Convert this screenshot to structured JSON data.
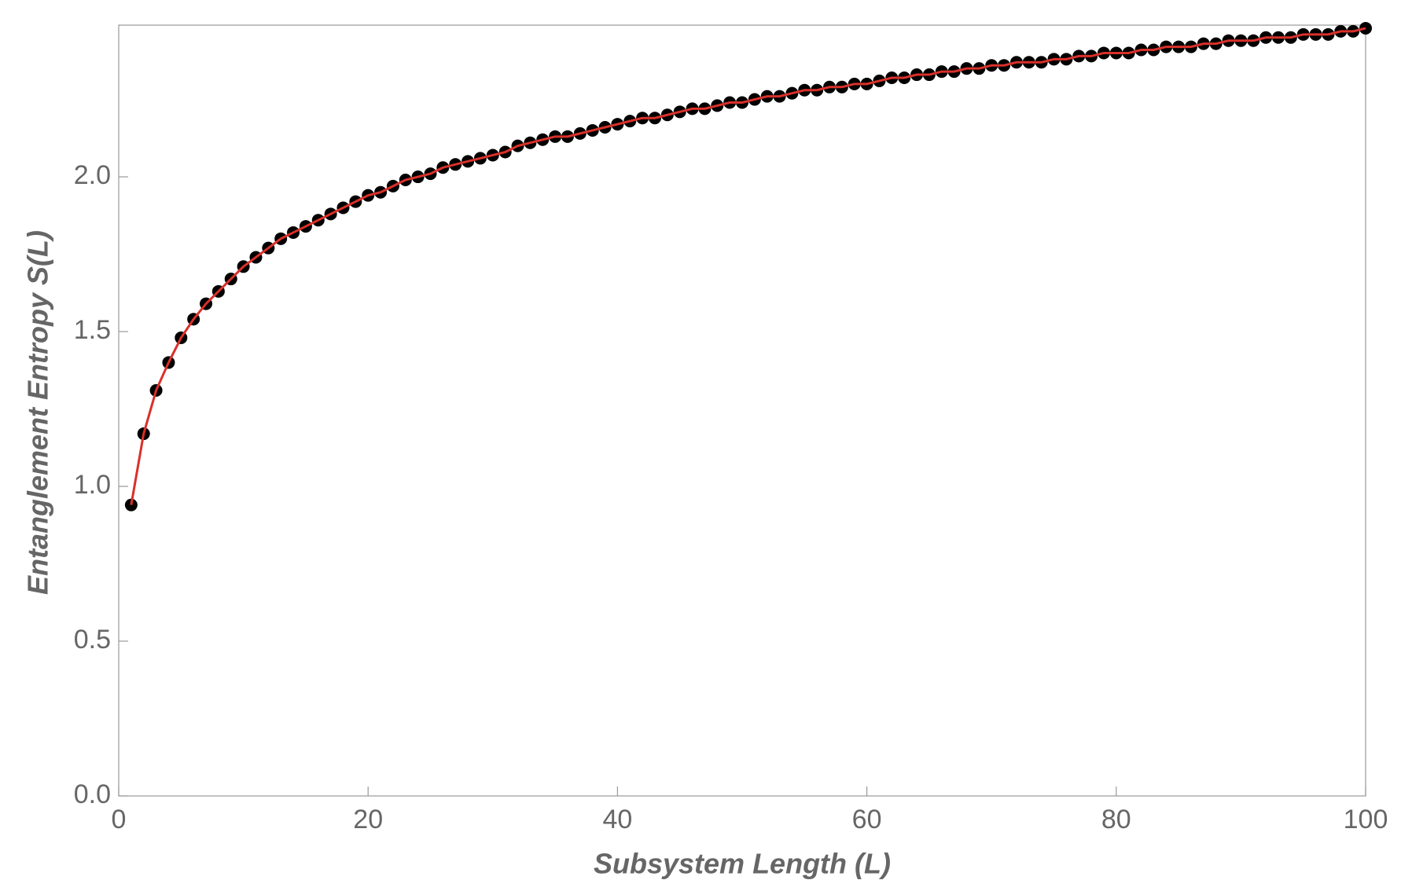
{
  "chart_data": {
    "type": "scatter",
    "x_label": "Subsystem Length (L)",
    "y_label": "Entanglement Entropy S(L)",
    "xlim": [
      0,
      100
    ],
    "ylim": [
      0,
      2.49
    ],
    "xticks": [
      0,
      20,
      40,
      60,
      80,
      100
    ],
    "yticks": [
      {
        "value": 0,
        "label": "0.0"
      },
      0.5,
      {
        "value": 1,
        "label": "1.0"
      },
      1.5,
      {
        "value": 2,
        "label": "2.0"
      }
    ],
    "x": [
      1,
      2,
      3,
      4,
      5,
      6,
      7,
      8,
      9,
      10,
      11,
      12,
      13,
      14,
      15,
      16,
      17,
      18,
      19,
      20,
      21,
      22,
      23,
      24,
      25,
      26,
      27,
      28,
      29,
      30,
      31,
      32,
      33,
      34,
      35,
      36,
      37,
      38,
      39,
      40,
      41,
      42,
      43,
      44,
      45,
      46,
      47,
      48,
      49,
      50,
      51,
      52,
      53,
      54,
      55,
      56,
      57,
      58,
      59,
      60,
      61,
      62,
      63,
      64,
      65,
      66,
      67,
      68,
      69,
      70,
      71,
      72,
      73,
      74,
      75,
      76,
      77,
      78,
      79,
      80,
      81,
      82,
      83,
      84,
      85,
      86,
      87,
      88,
      89,
      90,
      91,
      92,
      93,
      94,
      95,
      96,
      97,
      98,
      99,
      100
    ],
    "series": [
      {
        "style": "points",
        "color": "#000000",
        "values": [
          0.94,
          1.17,
          1.31,
          1.4,
          1.48,
          1.54,
          1.59,
          1.63,
          1.67,
          1.71,
          1.74,
          1.77,
          1.8,
          1.82,
          1.84,
          1.86,
          1.88,
          1.9,
          1.92,
          1.94,
          1.95,
          1.97,
          1.99,
          2.0,
          2.01,
          2.03,
          2.04,
          2.05,
          2.06,
          2.07,
          2.08,
          2.1,
          2.11,
          2.12,
          2.13,
          2.13,
          2.14,
          2.15,
          2.16,
          2.17,
          2.18,
          2.19,
          2.19,
          2.2,
          2.21,
          2.22,
          2.22,
          2.23,
          2.24,
          2.24,
          2.25,
          2.26,
          2.26,
          2.27,
          2.28,
          2.28,
          2.29,
          2.29,
          2.3,
          2.3,
          2.31,
          2.32,
          2.32,
          2.33,
          2.33,
          2.34,
          2.34,
          2.35,
          2.35,
          2.36,
          2.36,
          2.37,
          2.37,
          2.37,
          2.38,
          2.38,
          2.39,
          2.39,
          2.4,
          2.4,
          2.4,
          2.41,
          2.41,
          2.42,
          2.42,
          2.42,
          2.43,
          2.43,
          2.44,
          2.44,
          2.44,
          2.45,
          2.45,
          2.45,
          2.46,
          2.46,
          2.46,
          2.47,
          2.47,
          2.48
        ]
      },
      {
        "style": "line",
        "color": "#d9302a",
        "values": [
          0.94,
          1.17,
          1.31,
          1.4,
          1.48,
          1.54,
          1.59,
          1.63,
          1.67,
          1.71,
          1.74,
          1.77,
          1.8,
          1.82,
          1.84,
          1.86,
          1.88,
          1.9,
          1.92,
          1.94,
          1.95,
          1.97,
          1.99,
          2.0,
          2.01,
          2.03,
          2.04,
          2.05,
          2.06,
          2.07,
          2.08,
          2.1,
          2.11,
          2.12,
          2.13,
          2.13,
          2.14,
          2.15,
          2.16,
          2.17,
          2.18,
          2.19,
          2.19,
          2.2,
          2.21,
          2.22,
          2.22,
          2.23,
          2.24,
          2.24,
          2.25,
          2.26,
          2.26,
          2.27,
          2.28,
          2.28,
          2.29,
          2.29,
          2.3,
          2.3,
          2.31,
          2.32,
          2.32,
          2.33,
          2.33,
          2.34,
          2.34,
          2.35,
          2.35,
          2.36,
          2.36,
          2.37,
          2.37,
          2.37,
          2.38,
          2.38,
          2.39,
          2.39,
          2.4,
          2.4,
          2.4,
          2.41,
          2.41,
          2.42,
          2.42,
          2.42,
          2.43,
          2.43,
          2.44,
          2.44,
          2.44,
          2.45,
          2.45,
          2.45,
          2.46,
          2.46,
          2.46,
          2.47,
          2.47,
          2.48
        ]
      }
    ]
  }
}
